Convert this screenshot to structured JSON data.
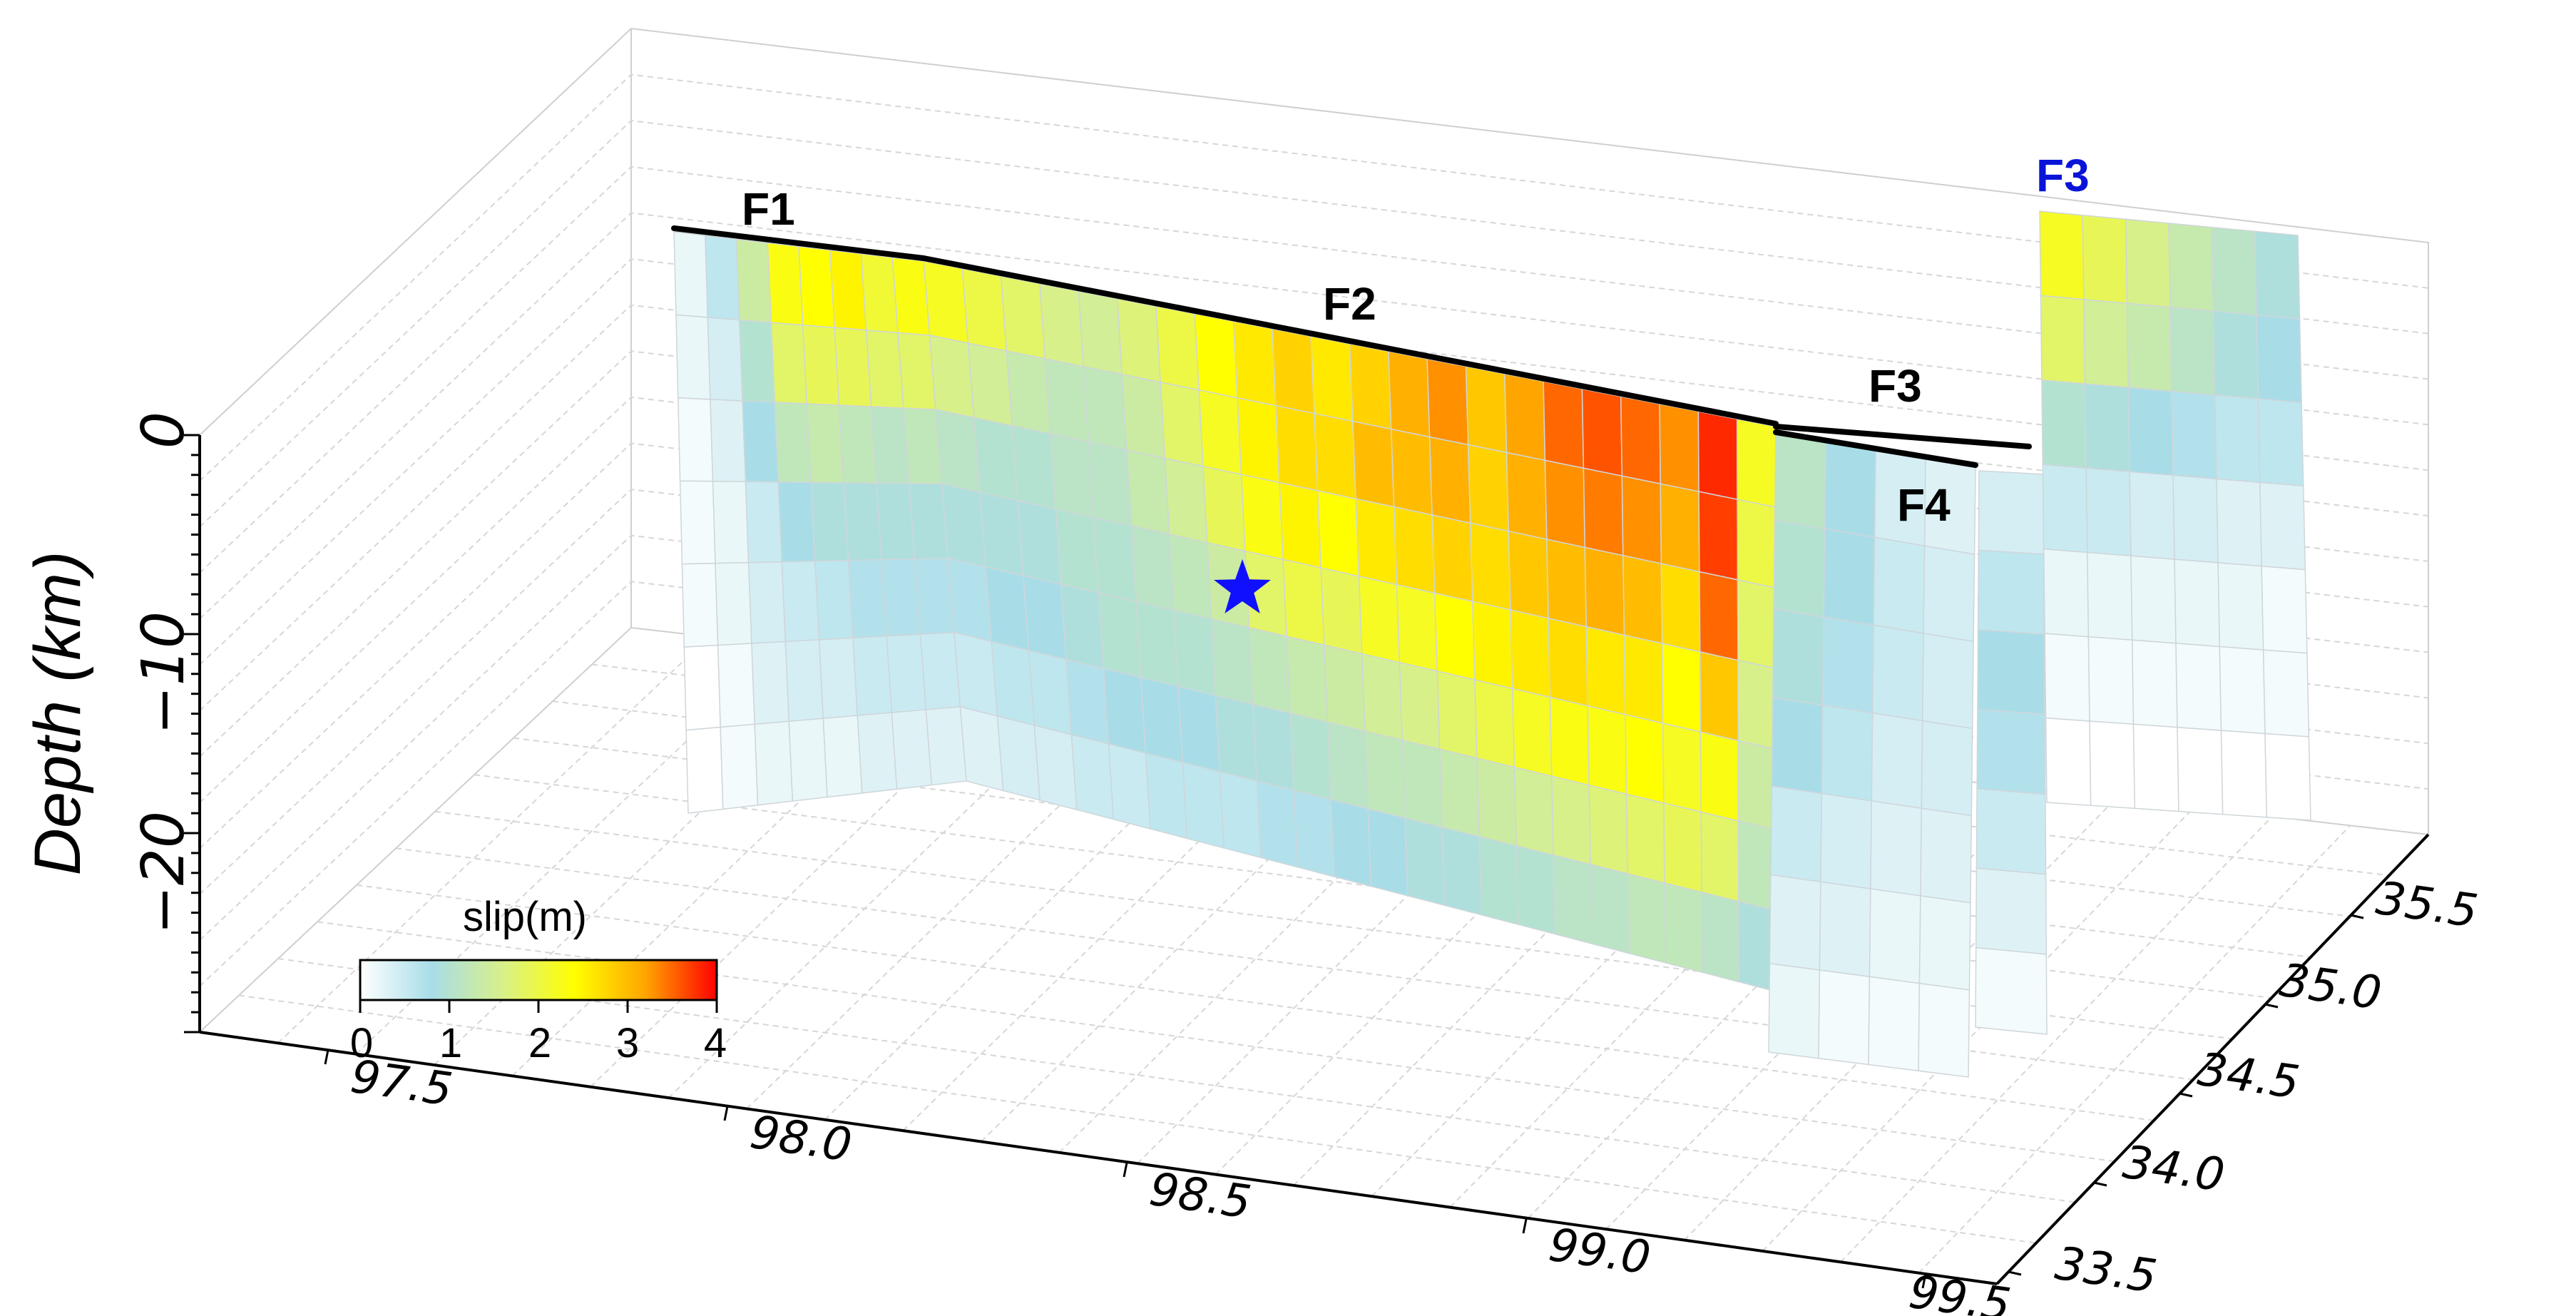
{
  "chart_data": {
    "type": "heatmap",
    "zlabel": "Depth (km)",
    "x_ticks": [
      "97.5",
      "98.0",
      "98.5",
      "99.0",
      "99.5"
    ],
    "y_ticks": [
      "33.5",
      "34.0",
      "34.5",
      "35.0",
      "35.5"
    ],
    "z_ticks": [
      "0",
      "−10",
      "−20"
    ],
    "x_range": [
      97.4,
      99.6
    ],
    "y_range": [
      33.4,
      35.7
    ],
    "z_range": [
      -30,
      0
    ],
    "colorbar": {
      "label": "slip(m)",
      "ticks": [
        "0",
        "1",
        "2",
        "3",
        "4"
      ],
      "range": [
        0,
        4
      ],
      "colormap": [
        "#ffffff",
        "#a8dde8",
        "#d8f08a",
        "#ffff00",
        "#ffa500",
        "#ff0000"
      ]
    },
    "hypocenter": {
      "lon": 98.5,
      "lat": 34.6,
      "depth": -8,
      "color": "#1010ff"
    },
    "faults": [
      {
        "name": "F1",
        "cols": 8,
        "rows": 7,
        "slip": [
          [
            0.2,
            0.6,
            1.4,
            2.3,
            2.4,
            2.5,
            2.1,
            2.3
          ],
          [
            0.2,
            0.4,
            1.0,
            1.8,
            1.9,
            1.9,
            1.8,
            1.8
          ],
          [
            0.1,
            0.3,
            0.8,
            1.2,
            1.3,
            1.2,
            1.1,
            1.2
          ],
          [
            0.1,
            0.2,
            0.5,
            0.8,
            0.9,
            0.9,
            0.9,
            0.9
          ],
          [
            0.1,
            0.2,
            0.4,
            0.5,
            0.6,
            0.7,
            0.7,
            0.7
          ],
          [
            0.0,
            0.1,
            0.3,
            0.4,
            0.4,
            0.5,
            0.5,
            0.5
          ],
          [
            0.0,
            0.1,
            0.2,
            0.2,
            0.2,
            0.3,
            0.3,
            0.3
          ]
        ]
      },
      {
        "name": "F2",
        "cols": 22,
        "rows": 7,
        "slip": [
          [
            2.2,
            2.0,
            1.8,
            1.6,
            1.5,
            1.7,
            2.0,
            2.4,
            2.6,
            2.8,
            2.6,
            2.8,
            3.1,
            3.3,
            2.9,
            3.2,
            3.5,
            3.6,
            3.5,
            3.3,
            3.8,
            2.2
          ],
          [
            1.6,
            1.5,
            1.3,
            1.2,
            1.2,
            1.4,
            1.8,
            2.2,
            2.5,
            2.7,
            2.7,
            3.0,
            3.0,
            3.1,
            2.8,
            3.1,
            3.3,
            3.4,
            3.3,
            3.1,
            3.7,
            2.0
          ],
          [
            1.1,
            1.0,
            1.0,
            1.1,
            1.1,
            1.3,
            1.5,
            1.9,
            2.3,
            2.5,
            2.4,
            2.6,
            2.7,
            2.8,
            2.7,
            2.9,
            3.0,
            3.1,
            3.0,
            2.7,
            3.5,
            1.8
          ],
          [
            0.9,
            0.9,
            0.9,
            1.0,
            1.0,
            1.1,
            1.2,
            1.4,
            1.8,
            2.0,
            1.9,
            2.2,
            2.2,
            2.4,
            2.5,
            2.6,
            2.7,
            2.6,
            2.6,
            2.4,
            2.9,
            1.6
          ],
          [
            0.7,
            0.8,
            0.8,
            0.9,
            1.0,
            1.0,
            1.0,
            1.1,
            1.2,
            1.3,
            1.4,
            1.5,
            1.6,
            1.8,
            2.0,
            2.2,
            2.3,
            2.3,
            2.4,
            2.2,
            2.3,
            1.4
          ],
          [
            0.5,
            0.6,
            0.6,
            0.7,
            0.8,
            0.8,
            0.8,
            0.9,
            0.9,
            1.0,
            1.1,
            1.2,
            1.2,
            1.3,
            1.4,
            1.5,
            1.6,
            1.7,
            1.8,
            1.9,
            1.8,
            1.2
          ],
          [
            0.3,
            0.4,
            0.4,
            0.5,
            0.5,
            0.6,
            0.6,
            0.6,
            0.7,
            0.7,
            0.8,
            0.8,
            0.9,
            0.9,
            1.0,
            1.0,
            1.1,
            1.1,
            1.2,
            1.2,
            1.1,
            0.9
          ]
        ]
      },
      {
        "name": "F4",
        "cols": 4,
        "rows": 7,
        "slip": [
          [
            1.1,
            0.8,
            0.4,
            0.3
          ],
          [
            1.0,
            0.8,
            0.5,
            0.4
          ],
          [
            0.9,
            0.7,
            0.5,
            0.4
          ],
          [
            0.8,
            0.6,
            0.4,
            0.4
          ],
          [
            0.5,
            0.4,
            0.3,
            0.3
          ],
          [
            0.3,
            0.3,
            0.2,
            0.2
          ],
          [
            0.2,
            0.1,
            0.1,
            0.1
          ]
        ]
      },
      {
        "name": "F3",
        "cols": 1,
        "rows": 7,
        "slip": [
          [
            0.4
          ],
          [
            0.6
          ],
          [
            0.8
          ],
          [
            0.7
          ],
          [
            0.5
          ],
          [
            0.3
          ],
          [
            0.1
          ]
        ]
      },
      {
        "name": "F3",
        "cols": 6,
        "rows": 7,
        "slip": [
          [
            2.2,
            1.9,
            1.6,
            1.3,
            1.1,
            0.9
          ],
          [
            1.8,
            1.5,
            1.3,
            1.1,
            0.9,
            0.8
          ],
          [
            1.0,
            0.9,
            0.8,
            0.7,
            0.6,
            0.6
          ],
          [
            0.5,
            0.5,
            0.4,
            0.4,
            0.3,
            0.3
          ],
          [
            0.2,
            0.2,
            0.2,
            0.2,
            0.2,
            0.1
          ],
          [
            0.1,
            0.1,
            0.1,
            0.1,
            0.1,
            0.1
          ],
          [
            0.0,
            0.0,
            0.0,
            0.0,
            0.0,
            0.0
          ]
        ]
      }
    ],
    "fault_labels": [
      {
        "text": "F1",
        "color": "#000000"
      },
      {
        "text": "F2",
        "color": "#000000"
      },
      {
        "text": "F3",
        "color": "#000000"
      },
      {
        "text": "F4",
        "color": "#000000"
      },
      {
        "text": "F3",
        "color": "#0a14d8"
      }
    ]
  }
}
